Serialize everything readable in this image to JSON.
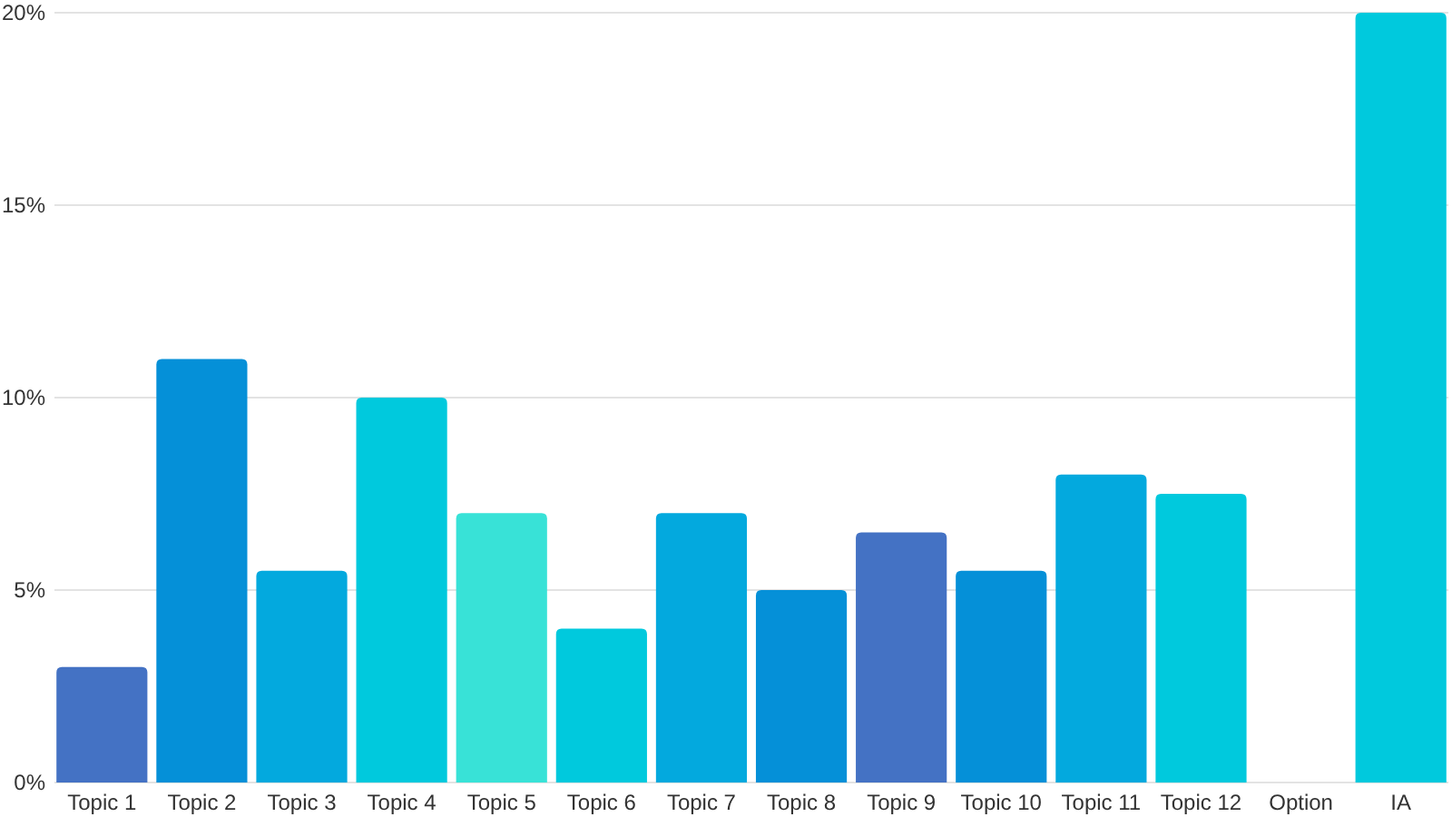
{
  "chart_data": {
    "type": "bar",
    "categories": [
      "Topic 1",
      "Topic 2",
      "Topic 3",
      "Topic 4",
      "Topic 5",
      "Topic 6",
      "Topic 7",
      "Topic 8",
      "Topic 9",
      "Topic 10",
      "Topic 11",
      "Topic 12",
      "Option",
      "IA"
    ],
    "values": [
      3,
      11,
      5.5,
      10,
      7,
      4,
      7,
      5,
      6.5,
      5.5,
      8,
      7.5,
      0,
      20
    ],
    "colors": [
      "#4472c4",
      "#0590d8",
      "#03a9de",
      "#00c9dd",
      "#38e2d7",
      "#00c9dd",
      "#03a9de",
      "#0590d8",
      "#4472c4",
      "#0590d8",
      "#03a9de",
      "#00c9dd",
      "#4472c4",
      "#00c9dd"
    ],
    "ylim": [
      0,
      20
    ],
    "yticks": [
      {
        "value": 0,
        "label": "0%"
      },
      {
        "value": 5,
        "label": "5%"
      },
      {
        "value": 10,
        "label": "10%"
      },
      {
        "value": 15,
        "label": "15%"
      },
      {
        "value": 20,
        "label": "20%"
      }
    ],
    "grid": "y"
  }
}
